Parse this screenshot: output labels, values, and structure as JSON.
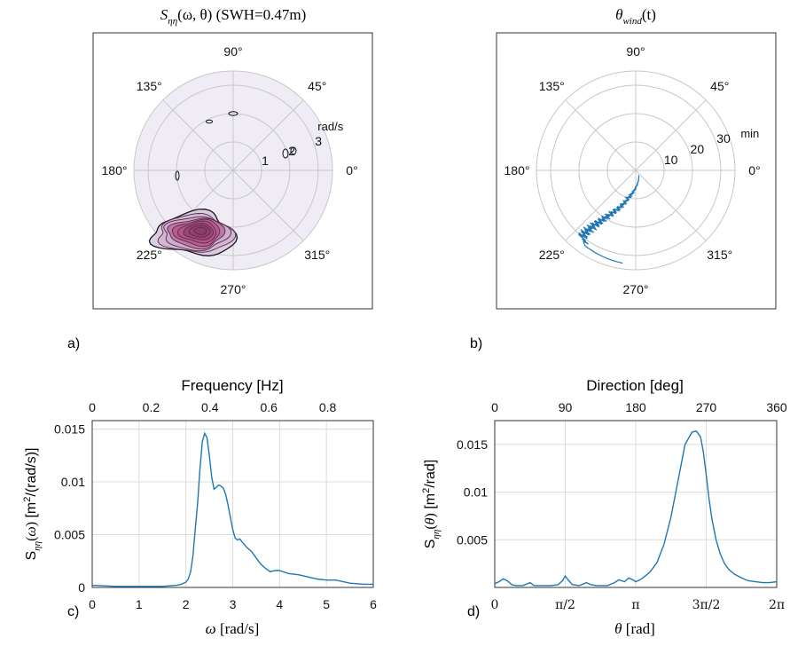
{
  "panel_labels": {
    "a": "a)",
    "b": "b)",
    "c": "c)",
    "d": "d)"
  },
  "chart_data": [
    {
      "type": "heatmap",
      "subtype": "polar-contour",
      "title": "S_ηη(ω,θ) (SWH=0.47m)",
      "title_math": "S",
      "title_sub": "ηη",
      "title_args": "(ω, θ)",
      "title_note": "(SWH=0.47m)",
      "angle_ticks_deg": [
        0,
        45,
        90,
        135,
        180,
        225,
        270,
        315
      ],
      "angle_tick_labels": [
        "0°",
        "45°",
        "90°",
        "135°",
        "180°",
        "225°",
        "270°",
        "315°"
      ],
      "radial_ticks": [
        1,
        2,
        3
      ],
      "radial_tick_labels": [
        "1",
        "2",
        "3"
      ],
      "radial_unit": "rad/s",
      "rlim": [
        0,
        3.5
      ],
      "disk_color": "#efecf6",
      "peak": {
        "theta_deg": 242,
        "omega": 2.4
      },
      "contour_levels": 9,
      "colors": [
        "#1a1a1a",
        "#5b2a4a",
        "#8a3a6a",
        "#b04a80",
        "#d8c8e0"
      ]
    },
    {
      "type": "line",
      "subtype": "polar",
      "title": "θ_wind(t)",
      "title_math": "θ",
      "title_sub": "wind",
      "title_args": "(t)",
      "angle_ticks_deg": [
        0,
        45,
        90,
        135,
        180,
        225,
        270,
        315
      ],
      "angle_tick_labels": [
        "0°",
        "45°",
        "90°",
        "135°",
        "180°",
        "225°",
        "270°",
        "315°"
      ],
      "radial_ticks": [
        10,
        20,
        30
      ],
      "radial_tick_labels": [
        "10",
        "20",
        "30"
      ],
      "radial_unit": "min",
      "rlim": [
        0,
        35
      ],
      "color": "#1f77b4",
      "series": [
        {
          "t_min": [
            2,
            4,
            6,
            8,
            10,
            12,
            14,
            16,
            18,
            20,
            22,
            24,
            26,
            28,
            30,
            32,
            33
          ],
          "theta_deg": [
            300,
            282,
            270,
            262,
            255,
            251,
            247,
            243,
            240,
            237,
            235,
            233,
            232,
            231,
            231,
            236,
            262
          ]
        }
      ]
    },
    {
      "type": "line",
      "xlabel": "ω [rad/s]",
      "ylabel": "S_ηη(ω) [m²/(rad/s)]",
      "top_axis_label": "Frequency [Hz]",
      "top_ticks": [
        0,
        0.2,
        0.4,
        0.6,
        0.8
      ],
      "top_tick_labels": [
        "0",
        "0.2",
        "0.4",
        "0.6",
        "0.8"
      ],
      "xticks": [
        0,
        1,
        2,
        3,
        4,
        5,
        6
      ],
      "xtick_labels": [
        "0",
        "1",
        "2",
        "3",
        "4",
        "5",
        "6"
      ],
      "yticks": [
        0,
        0.005,
        0.01,
        0.015
      ],
      "ytick_labels": [
        "0",
        "0.005",
        "0.01",
        "0.015"
      ],
      "xlim": [
        0,
        6
      ],
      "ylim": [
        0,
        0.0158
      ],
      "grid": true,
      "color": "#1f77b4",
      "series": [
        {
          "x": [
            0,
            0.5,
            1.0,
            1.5,
            1.8,
            1.9,
            2.0,
            2.05,
            2.1,
            2.15,
            2.2,
            2.25,
            2.3,
            2.35,
            2.4,
            2.45,
            2.5,
            2.55,
            2.6,
            2.65,
            2.7,
            2.75,
            2.8,
            2.85,
            2.9,
            2.95,
            3.0,
            3.05,
            3.1,
            3.15,
            3.2,
            3.3,
            3.4,
            3.5,
            3.6,
            3.7,
            3.8,
            3.9,
            4.0,
            4.2,
            4.4,
            4.6,
            4.8,
            5.0,
            5.2,
            5.5,
            5.8,
            6.0
          ],
          "y": [
            0.0002,
            0.0001,
            0.0001,
            0.0001,
            0.0002,
            0.0003,
            0.0005,
            0.0008,
            0.0015,
            0.003,
            0.0055,
            0.008,
            0.0112,
            0.0138,
            0.0146,
            0.0142,
            0.0125,
            0.0105,
            0.0093,
            0.0095,
            0.0097,
            0.0096,
            0.0094,
            0.0088,
            0.0078,
            0.0066,
            0.0055,
            0.0047,
            0.0045,
            0.0046,
            0.0043,
            0.0038,
            0.0034,
            0.0028,
            0.0022,
            0.0018,
            0.0015,
            0.0016,
            0.0016,
            0.0013,
            0.0012,
            0.001,
            0.0008,
            0.0007,
            0.0007,
            0.0004,
            0.0003,
            0.0003
          ]
        }
      ]
    },
    {
      "type": "line",
      "xlabel": "θ [rad]",
      "ylabel": "S_ηη(θ) [m²/rad]",
      "top_axis_label": "Direction [deg]",
      "top_ticks": [
        0,
        90,
        180,
        270,
        360
      ],
      "top_tick_labels": [
        "0",
        "90",
        "180",
        "270",
        "360"
      ],
      "xticks_rad_frac": [
        0,
        0.5,
        1,
        1.5,
        2
      ],
      "xtick_labels": [
        "0",
        "π/2",
        "π",
        "3π/2",
        "2π"
      ],
      "yticks": [
        0.005,
        0.01,
        0.015
      ],
      "ytick_labels": [
        "0.005",
        "0.01",
        "0.015"
      ],
      "xlim_pi": [
        0,
        2
      ],
      "ylim": [
        0,
        0.0175
      ],
      "grid": true,
      "color": "#1f77b4",
      "series": [
        {
          "x_pi": [
            0,
            0.03,
            0.06,
            0.09,
            0.12,
            0.15,
            0.2,
            0.25,
            0.28,
            0.32,
            0.36,
            0.4,
            0.45,
            0.48,
            0.5,
            0.52,
            0.55,
            0.6,
            0.65,
            0.68,
            0.72,
            0.76,
            0.8,
            0.85,
            0.88,
            0.92,
            0.95,
            0.98,
            1.0,
            1.03,
            1.06,
            1.1,
            1.15,
            1.2,
            1.25,
            1.3,
            1.35,
            1.4,
            1.43,
            1.46,
            1.48,
            1.5,
            1.52,
            1.54,
            1.57,
            1.6,
            1.63,
            1.66,
            1.7,
            1.75,
            1.8,
            1.85,
            1.9,
            1.95,
            2.0
          ],
          "y": [
            0.0004,
            0.0006,
            0.0009,
            0.0007,
            0.0003,
            0.0002,
            0.0002,
            0.0005,
            0.0002,
            0.0002,
            0.0002,
            0.0002,
            0.0003,
            0.0007,
            0.0012,
            0.0008,
            0.0003,
            0.0002,
            0.0005,
            0.0003,
            0.0002,
            0.0002,
            0.0002,
            0.0005,
            0.0008,
            0.0006,
            0.001,
            0.0008,
            0.0006,
            0.0008,
            0.0011,
            0.0016,
            0.0026,
            0.0045,
            0.0074,
            0.0112,
            0.015,
            0.0163,
            0.0164,
            0.0158,
            0.0142,
            0.0118,
            0.0093,
            0.0072,
            0.005,
            0.0035,
            0.0025,
            0.0019,
            0.0014,
            0.001,
            0.0007,
            0.0006,
            0.0005,
            0.0005,
            0.0006
          ]
        }
      ]
    }
  ]
}
